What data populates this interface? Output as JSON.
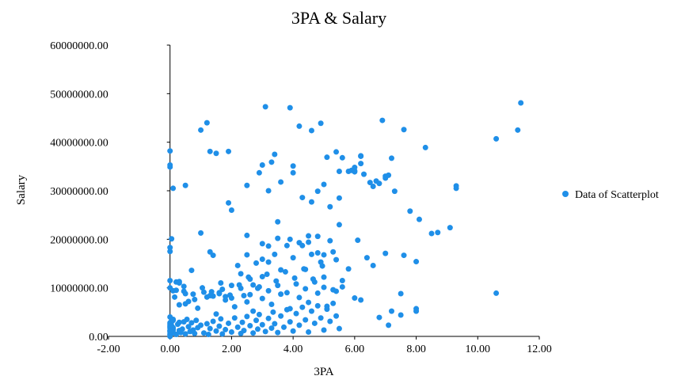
{
  "chart_data": {
    "type": "scatter",
    "title": "3PA & Salary",
    "xlabel": "3PA",
    "ylabel": "Salary",
    "xlim": [
      -2,
      12
    ],
    "ylim": [
      0,
      60000000
    ],
    "x_ticks": [
      "-2.00",
      "0.00",
      "2.00",
      "4.00",
      "6.00",
      "8.00",
      "10.00",
      "12.00"
    ],
    "x_tick_values": [
      -2,
      0,
      2,
      4,
      6,
      8,
      10,
      12
    ],
    "y_ticks": [
      "0.00",
      "10000000.00",
      "20000000.00",
      "30000000.00",
      "40000000.00",
      "50000000.00",
      "60000000.00"
    ],
    "y_tick_values": [
      0,
      10000000,
      20000000,
      30000000,
      40000000,
      50000000,
      60000000
    ],
    "grid": false,
    "legend_position": "right",
    "colors": {
      "marker": "#1f8fe8",
      "axis": "#000000"
    },
    "series": [
      {
        "name": "Data of Scatterplot",
        "x": [
          0.0,
          0.0,
          0.05,
          0.1,
          0.0,
          0.0,
          0.05,
          0.1,
          0.0,
          0.1,
          0.05,
          0.0,
          0.05,
          0.1,
          0.0,
          0.0,
          0.1,
          0.05,
          0.0,
          0.0,
          0.2,
          0.3,
          0.25,
          0.35,
          0.45,
          0.4,
          0.5,
          0.6,
          0.55,
          0.65,
          0.7,
          0.8,
          0.9,
          0.85,
          0.75,
          1.0,
          1.1,
          1.2,
          1.3,
          1.25,
          1.4,
          1.5,
          1.6,
          1.7,
          1.65,
          1.8,
          1.9,
          2.0,
          2.1,
          2.2,
          2.3,
          2.35,
          2.4,
          2.5,
          2.6,
          2.7,
          2.8,
          2.85,
          2.9,
          3.0,
          3.1,
          3.2,
          3.3,
          3.35,
          3.4,
          3.5,
          3.6,
          3.7,
          3.8,
          3.9,
          4.0,
          4.1,
          4.2,
          4.3,
          4.4,
          4.5,
          4.6,
          4.7,
          4.8,
          4.9,
          5.0,
          5.1,
          5.2,
          5.3,
          5.4,
          5.5,
          0.3,
          0.6,
          0.9,
          1.2,
          1.5,
          1.8,
          2.1,
          2.4,
          2.7,
          3.0,
          3.3,
          3.6,
          3.9,
          4.2,
          4.5,
          4.8,
          5.1,
          5.4,
          0.2,
          0.5,
          0.8,
          1.1,
          1.4,
          1.7,
          2.0,
          2.3,
          2.6,
          2.9,
          3.2,
          3.5,
          3.8,
          4.1,
          4.4,
          4.7,
          5.0,
          5.3,
          5.6,
          0.15,
          0.45,
          0.75,
          1.05,
          1.35,
          1.65,
          1.95,
          2.25,
          2.55,
          2.85,
          3.15,
          3.45,
          3.75,
          4.05,
          4.35,
          4.65,
          4.95,
          0.0,
          0.0,
          0.05,
          0.2,
          0.3,
          0.5,
          0.7,
          1.3,
          1.4,
          1.6,
          1.8,
          2.0,
          2.2,
          2.3,
          2.5,
          2.6,
          2.8,
          3.0,
          3.2,
          3.4,
          3.6,
          3.8,
          4.0,
          4.2,
          4.4,
          4.6,
          4.8,
          5.0,
          5.2,
          5.4,
          5.6,
          5.8,
          6.0,
          6.1,
          6.2,
          6.4,
          6.6,
          6.8,
          7.0,
          7.2,
          0.0,
          0.0,
          0.0,
          0.1,
          0.5,
          1.0,
          1.3,
          1.5,
          1.9,
          2.0,
          2.5,
          3.0,
          3.2,
          3.5,
          4.0,
          4.5,
          5.0,
          5.5,
          6.0,
          6.5,
          7.0,
          7.5,
          8.0,
          5.8,
          6.2,
          6.8,
          7.6,
          8.0,
          4.0,
          4.3,
          4.6,
          4.8,
          5.2,
          5.5,
          5.0,
          5.3,
          0.0,
          0.0,
          0.1,
          0.3,
          0.45,
          1.3,
          1.6,
          2.5,
          2.7,
          3.2,
          3.0,
          3.5,
          3.9,
          4.3,
          4.8,
          4.9,
          4.5,
          2.5,
          2.9,
          3.1,
          3.6,
          3.9,
          4.2,
          4.6,
          4.9,
          5.5,
          5.9,
          6.0,
          6.2,
          6.3,
          7.1,
          7.2,
          6.7,
          6.9,
          7.6,
          7.1,
          7.5,
          8.0,
          8.3,
          8.5,
          8.7,
          9.1,
          9.3,
          9.3,
          10.6,
          11.3,
          11.4,
          10.6,
          5.1,
          5.4,
          5.6,
          6.0,
          6.2,
          6.6,
          7.0,
          7.3,
          7.8,
          8.1,
          3.0,
          3.3,
          3.4,
          1.0,
          1.2,
          1.9,
          0.0,
          0.0,
          0.1,
          0.3
        ],
        "y": [
          0,
          500000,
          1000000,
          1500000,
          2000000,
          2500000,
          3000000,
          3500000,
          1200000,
          800000,
          2200000,
          4000000,
          600000,
          1800000,
          300000,
          2800000,
          1300000,
          3200000,
          900000,
          1700000,
          400000,
          1200000,
          2500000,
          800000,
          3000000,
          1500000,
          500000,
          2000000,
          3500000,
          1000000,
          2800000,
          600000,
          1800000,
          3300000,
          1300000,
          2300000,
          700000,
          2600000,
          1600000,
          400000,
          3100000,
          1100000,
          2100000,
          500000,
          3600000,
          1400000,
          2700000,
          900000,
          3800000,
          1900000,
          600000,
          2900000,
          1200000,
          4100000,
          2200000,
          700000,
          3300000,
          1500000,
          4500000,
          2400000,
          1000000,
          3700000,
          1700000,
          5000000,
          2600000,
          800000,
          4200000,
          1900000,
          5500000,
          3000000,
          1100000,
          4700000,
          2300000,
          6000000,
          3400000,
          900000,
          5200000,
          2700000,
          6300000,
          3800000,
          1300000,
          5600000,
          3100000,
          6800000,
          4200000,
          1600000,
          6500000,
          7200000,
          5800000,
          8100000,
          4600000,
          7500000,
          6100000,
          8400000,
          5200000,
          7800000,
          6600000,
          8700000,
          5700000,
          8000000,
          7000000,
          8900000,
          6200000,
          9300000,
          9500000,
          8800000,
          7600000,
          9100000,
          8300000,
          9700000,
          7900000,
          9900000,
          8600000,
          10200000,
          9400000,
          10500000,
          9000000,
          10800000,
          9800000,
          11200000,
          10100000,
          9600000,
          11500000,
          8100000,
          9300000,
          8700000,
          10000000,
          9200000,
          11000000,
          8500000,
          10600000,
          12200000,
          9900000,
          12800000,
          11400000,
          13300000,
          12000000,
          13900000,
          11800000,
          14500000,
          17500000,
          18300000,
          20100000,
          11200000,
          11000000,
          6700000,
          13600000,
          17400000,
          16700000,
          8800000,
          8200000,
          10500000,
          14600000,
          12900000,
          16800000,
          11800000,
          15100000,
          12300000,
          15300000,
          16900000,
          13700000,
          18700000,
          16200000,
          19300000,
          13800000,
          16900000,
          17200000,
          12200000,
          19700000,
          15800000,
          10200000,
          13900000,
          7900000,
          19800000,
          7500000,
          16200000,
          14600000,
          3900000,
          17100000,
          5200000,
          34900000,
          38200000,
          35300000,
          30500000,
          31100000,
          21300000,
          38100000,
          37700000,
          27500000,
          26000000,
          20800000,
          15900000,
          30000000,
          23600000,
          33700000,
          20700000,
          31300000,
          28500000,
          34100000,
          31700000,
          33000000,
          8800000,
          5700000,
          34000000,
          37200000,
          31500000,
          16700000,
          15400000,
          35100000,
          28600000,
          27700000,
          29900000,
          26700000,
          23000000,
          16800000,
          17400000,
          10000000,
          11500000,
          9400000,
          11300000,
          10300000,
          8400000,
          9000000,
          7100000,
          10600000,
          18600000,
          19100000,
          20200000,
          20000000,
          18700000,
          20600000,
          15300000,
          19400000,
          31100000,
          33700000,
          47300000,
          31800000,
          47100000,
          43300000,
          42400000,
          43900000,
          34000000,
          34200000,
          33900000,
          37100000,
          33400000,
          33200000,
          36700000,
          32000000,
          44500000,
          42600000,
          2300000,
          4400000,
          5200000,
          38900000,
          21200000,
          21400000,
          22400000,
          31000000,
          30500000,
          40700000,
          42500000,
          48100000,
          8900000,
          36900000,
          38000000,
          36800000,
          34800000,
          35600000,
          30900000,
          32600000,
          29900000,
          25800000,
          24100000,
          35300000,
          35900000,
          37500000,
          42500000,
          44000000,
          38100000,
          1100000,
          2200000,
          3300000,
          2900000
        ]
      }
    ]
  }
}
